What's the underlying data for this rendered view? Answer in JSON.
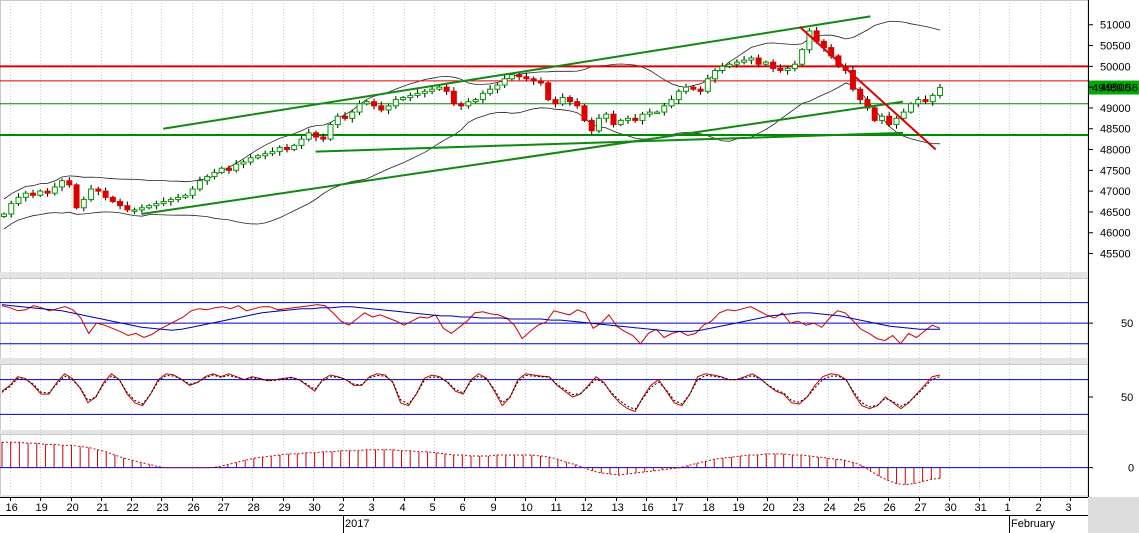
{
  "chart_data": [
    {
      "type": "candlestick",
      "panel": "price",
      "y_ticks": [
        "51000",
        "50500",
        "50000",
        "49500",
        "49000",
        "48500",
        "48000",
        "47500",
        "47000",
        "46500",
        "46000",
        "45500"
      ],
      "y_tick_values": [
        51000,
        50500,
        50000,
        49500,
        49000,
        48500,
        48000,
        47500,
        47000,
        46500,
        46000,
        45500
      ],
      "ylim": [
        45200,
        51450
      ],
      "last_price_label": "49489.56",
      "last_price": 49489.56,
      "close_series": [
        46450,
        46700,
        46850,
        46950,
        46900,
        47000,
        46950,
        47100,
        47250,
        47150,
        46600,
        46800,
        47050,
        47000,
        46850,
        46750,
        46650,
        46550,
        46550,
        46600,
        46650,
        46700,
        46750,
        46800,
        46850,
        46900,
        47050,
        47250,
        47350,
        47450,
        47550,
        47500,
        47650,
        47700,
        47800,
        47850,
        47900,
        47950,
        48050,
        48000,
        48100,
        48250,
        48400,
        48300,
        48250,
        48600,
        48800,
        48750,
        48900,
        49100,
        49150,
        49050,
        48950,
        49050,
        49200,
        49250,
        49300,
        49350,
        49400,
        49450,
        49500,
        49400,
        49100,
        49050,
        49150,
        49200,
        49350,
        49450,
        49550,
        49700,
        49800,
        49750,
        49700,
        49650,
        49600,
        49200,
        49100,
        49250,
        49150,
        49050,
        48700,
        48450,
        48750,
        48850,
        48600,
        48700,
        48750,
        48700,
        48850,
        48900,
        48900,
        49050,
        49200,
        49400,
        49500,
        49450,
        49400,
        49700,
        49900,
        50000,
        50050,
        50100,
        50150,
        50200,
        50050,
        50100,
        49950,
        49900,
        49950,
        50050,
        50400,
        50850,
        50600,
        50450,
        50250,
        50000,
        49900,
        49450,
        49200,
        49000,
        48700,
        48800,
        48600,
        48750,
        48900,
        49100,
        49200,
        49150,
        49300,
        49489.56
      ],
      "candles_direction_note": "",
      "lines": {
        "horizontal_red": [
          50000,
          49650
        ],
        "horizontal_green": [
          49100,
          48350
        ],
        "upper_channel": {
          "from": [
            0.15,
            48500
          ],
          "to": [
            0.8,
            51200
          ]
        },
        "lower_channel": {
          "from": [
            0.13,
            46450
          ],
          "to": [
            0.83,
            49150
          ]
        },
        "support_line": {
          "from": [
            0.29,
            47950
          ],
          "to": [
            0.83,
            48400
          ]
        },
        "down_trend_red": {
          "from": [
            0.735,
            50950
          ],
          "to": [
            0.86,
            48000
          ]
        }
      },
      "colors": {
        "up": "#009900",
        "down": "#dd0000",
        "band": "#222222",
        "hline_red": "#dd0000",
        "hline_green": "#008800",
        "trend": "#118811"
      }
    },
    {
      "type": "line",
      "panel": "oscillator_1",
      "y_ticks": [
        "50"
      ],
      "levels": [
        70,
        50,
        30
      ],
      "ylim": [
        20,
        90
      ],
      "series": [
        {
          "values": [
            67,
            65,
            62,
            63,
            67,
            65,
            62,
            64,
            66,
            63,
            55,
            40,
            50,
            48,
            45,
            42,
            38,
            40,
            36,
            39,
            44,
            48,
            52,
            56,
            62,
            64,
            63,
            65,
            66,
            64,
            67,
            62,
            64,
            66,
            66,
            63,
            64,
            65,
            66,
            67,
            68,
            67,
            60,
            52,
            48,
            54,
            60,
            56,
            58,
            55,
            52,
            48,
            52,
            56,
            55,
            58,
            45,
            40,
            46,
            52,
            60,
            61,
            59,
            58,
            55,
            48,
            35,
            42,
            48,
            51,
            62,
            60,
            58,
            63,
            60,
            45,
            50,
            58,
            47,
            42,
            38,
            30,
            40,
            44,
            36,
            40,
            42,
            38,
            40,
            48,
            52,
            60,
            63,
            62,
            64,
            66,
            62,
            58,
            55,
            60,
            50,
            52,
            48,
            50,
            46,
            55,
            62,
            60,
            52,
            44,
            40,
            35,
            33,
            38,
            30,
            40,
            36,
            42,
            48,
            45
          ]
        },
        {
          "values": [
            68,
            67,
            66,
            65,
            64,
            63,
            62,
            60,
            58,
            56,
            54,
            52,
            50,
            48,
            46,
            45,
            44,
            43,
            44,
            46,
            48,
            50,
            52,
            54,
            56,
            58,
            60,
            61,
            62,
            63,
            64,
            64,
            65,
            65,
            66,
            66,
            65,
            64,
            63,
            62,
            61,
            60,
            59,
            58,
            57,
            57,
            56,
            56,
            55,
            55,
            55,
            54,
            54,
            54,
            54,
            53,
            53,
            52,
            51,
            50,
            49,
            48,
            47,
            46,
            45,
            44,
            43,
            42,
            42,
            42,
            43,
            45,
            47,
            49,
            51,
            53,
            55,
            57,
            58,
            59,
            60,
            60,
            59,
            58,
            57,
            55,
            53,
            51,
            49,
            47,
            46,
            45,
            44,
            44,
            44
          ]
        }
      ],
      "colors": {
        "s1": "#cc0000",
        "s2": "#0000aa",
        "level": "#0000cc"
      }
    },
    {
      "type": "line",
      "panel": "stochastic",
      "y_ticks": [
        "50"
      ],
      "levels": [
        80,
        20
      ],
      "ylim": [
        0,
        100
      ],
      "series": [
        {
          "values": [
            60,
            70,
            85,
            82,
            70,
            55,
            55,
            75,
            90,
            82,
            65,
            40,
            50,
            75,
            90,
            80,
            55,
            40,
            35,
            55,
            80,
            90,
            88,
            80,
            70,
            75,
            85,
            90,
            85,
            90,
            85,
            80,
            85,
            82,
            78,
            80,
            82,
            84,
            80,
            70,
            60,
            80,
            88,
            85,
            80,
            70,
            70,
            85,
            90,
            88,
            75,
            40,
            35,
            55,
            82,
            88,
            85,
            75,
            60,
            55,
            80,
            90,
            82,
            60,
            35,
            50,
            80,
            90,
            88,
            86,
            85,
            70,
            60,
            50,
            55,
            70,
            85,
            75,
            55,
            40,
            30,
            25,
            50,
            70,
            80,
            60,
            40,
            35,
            55,
            85,
            90,
            88,
            85,
            80,
            80,
            85,
            90,
            82,
            70,
            60,
            55,
            40,
            38,
            50,
            70,
            85,
            90,
            88,
            80,
            55,
            35,
            30,
            35,
            50,
            40,
            30,
            40,
            55,
            70,
            85,
            88
          ]
        },
        {
          "values": [
            58,
            68,
            82,
            80,
            72,
            58,
            57,
            72,
            86,
            80,
            66,
            44,
            50,
            72,
            86,
            80,
            58,
            44,
            38,
            55,
            77,
            87,
            86,
            80,
            72,
            75,
            83,
            88,
            84,
            87,
            84,
            80,
            83,
            81,
            78,
            79,
            81,
            83,
            80,
            72,
            63,
            78,
            85,
            84,
            80,
            72,
            71,
            83,
            87,
            86,
            76,
            45,
            38,
            55,
            78,
            85,
            83,
            76,
            63,
            57,
            77,
            86,
            81,
            63,
            40,
            50,
            76,
            87,
            86,
            85,
            84,
            72,
            63,
            54,
            56,
            68,
            81,
            74,
            57,
            44,
            34,
            29,
            48,
            66,
            76,
            62,
            44,
            38,
            55,
            80,
            87,
            86,
            84,
            80,
            80,
            83,
            87,
            81,
            71,
            62,
            57,
            44,
            41,
            50,
            66,
            80,
            86,
            86,
            79,
            58,
            40,
            33,
            36,
            48,
            42,
            34,
            41,
            53,
            67,
            81,
            85
          ]
        }
      ],
      "colors": {
        "k": "#cc0000",
        "d": "#000000",
        "level": "#0000cc"
      }
    },
    {
      "type": "bar",
      "panel": "macd_histogram",
      "y_ticks": [
        "0"
      ],
      "ylim": [
        -22,
        28
      ],
      "values": [
        24,
        24,
        24,
        23,
        23,
        22,
        22,
        21,
        21,
        20,
        19,
        17,
        15,
        12,
        9,
        7,
        5,
        3,
        1,
        0,
        0,
        0,
        0,
        0,
        0,
        1,
        3,
        5,
        7,
        9,
        10,
        11,
        12,
        13,
        13,
        14,
        14,
        15,
        15,
        16,
        16,
        16,
        17,
        17,
        17,
        17,
        16,
        16,
        15,
        15,
        14,
        13,
        12,
        12,
        11,
        11,
        11,
        12,
        12,
        12,
        12,
        12,
        11,
        10,
        8,
        5,
        3,
        0,
        -3,
        -5,
        -6,
        -7,
        -6,
        -5,
        -4,
        -3,
        -2,
        -1,
        0,
        2,
        4,
        6,
        8,
        9,
        10,
        11,
        12,
        12,
        13,
        13,
        13,
        12,
        12,
        11,
        10,
        9,
        8,
        7,
        5,
        2,
        -3,
        -8,
        -12,
        -15,
        -16,
        -15,
        -13,
        -11,
        -10
      ],
      "colors": {
        "bar": "#cc0000",
        "zero": "#0000cc"
      }
    }
  ],
  "x_axis": {
    "day_labels": [
      "16",
      "19",
      "20",
      "21",
      "22",
      "23",
      "26",
      "27",
      "28",
      "29",
      "30",
      "2",
      "3",
      "4",
      "5",
      "6",
      "9",
      "10",
      "11",
      "12",
      "13",
      "16",
      "17",
      "18",
      "19",
      "20",
      "23",
      "24",
      "25",
      "26",
      "27",
      "30",
      "31",
      "1",
      "2",
      "3"
    ],
    "month_labels": [
      "2017",
      "February"
    ]
  }
}
